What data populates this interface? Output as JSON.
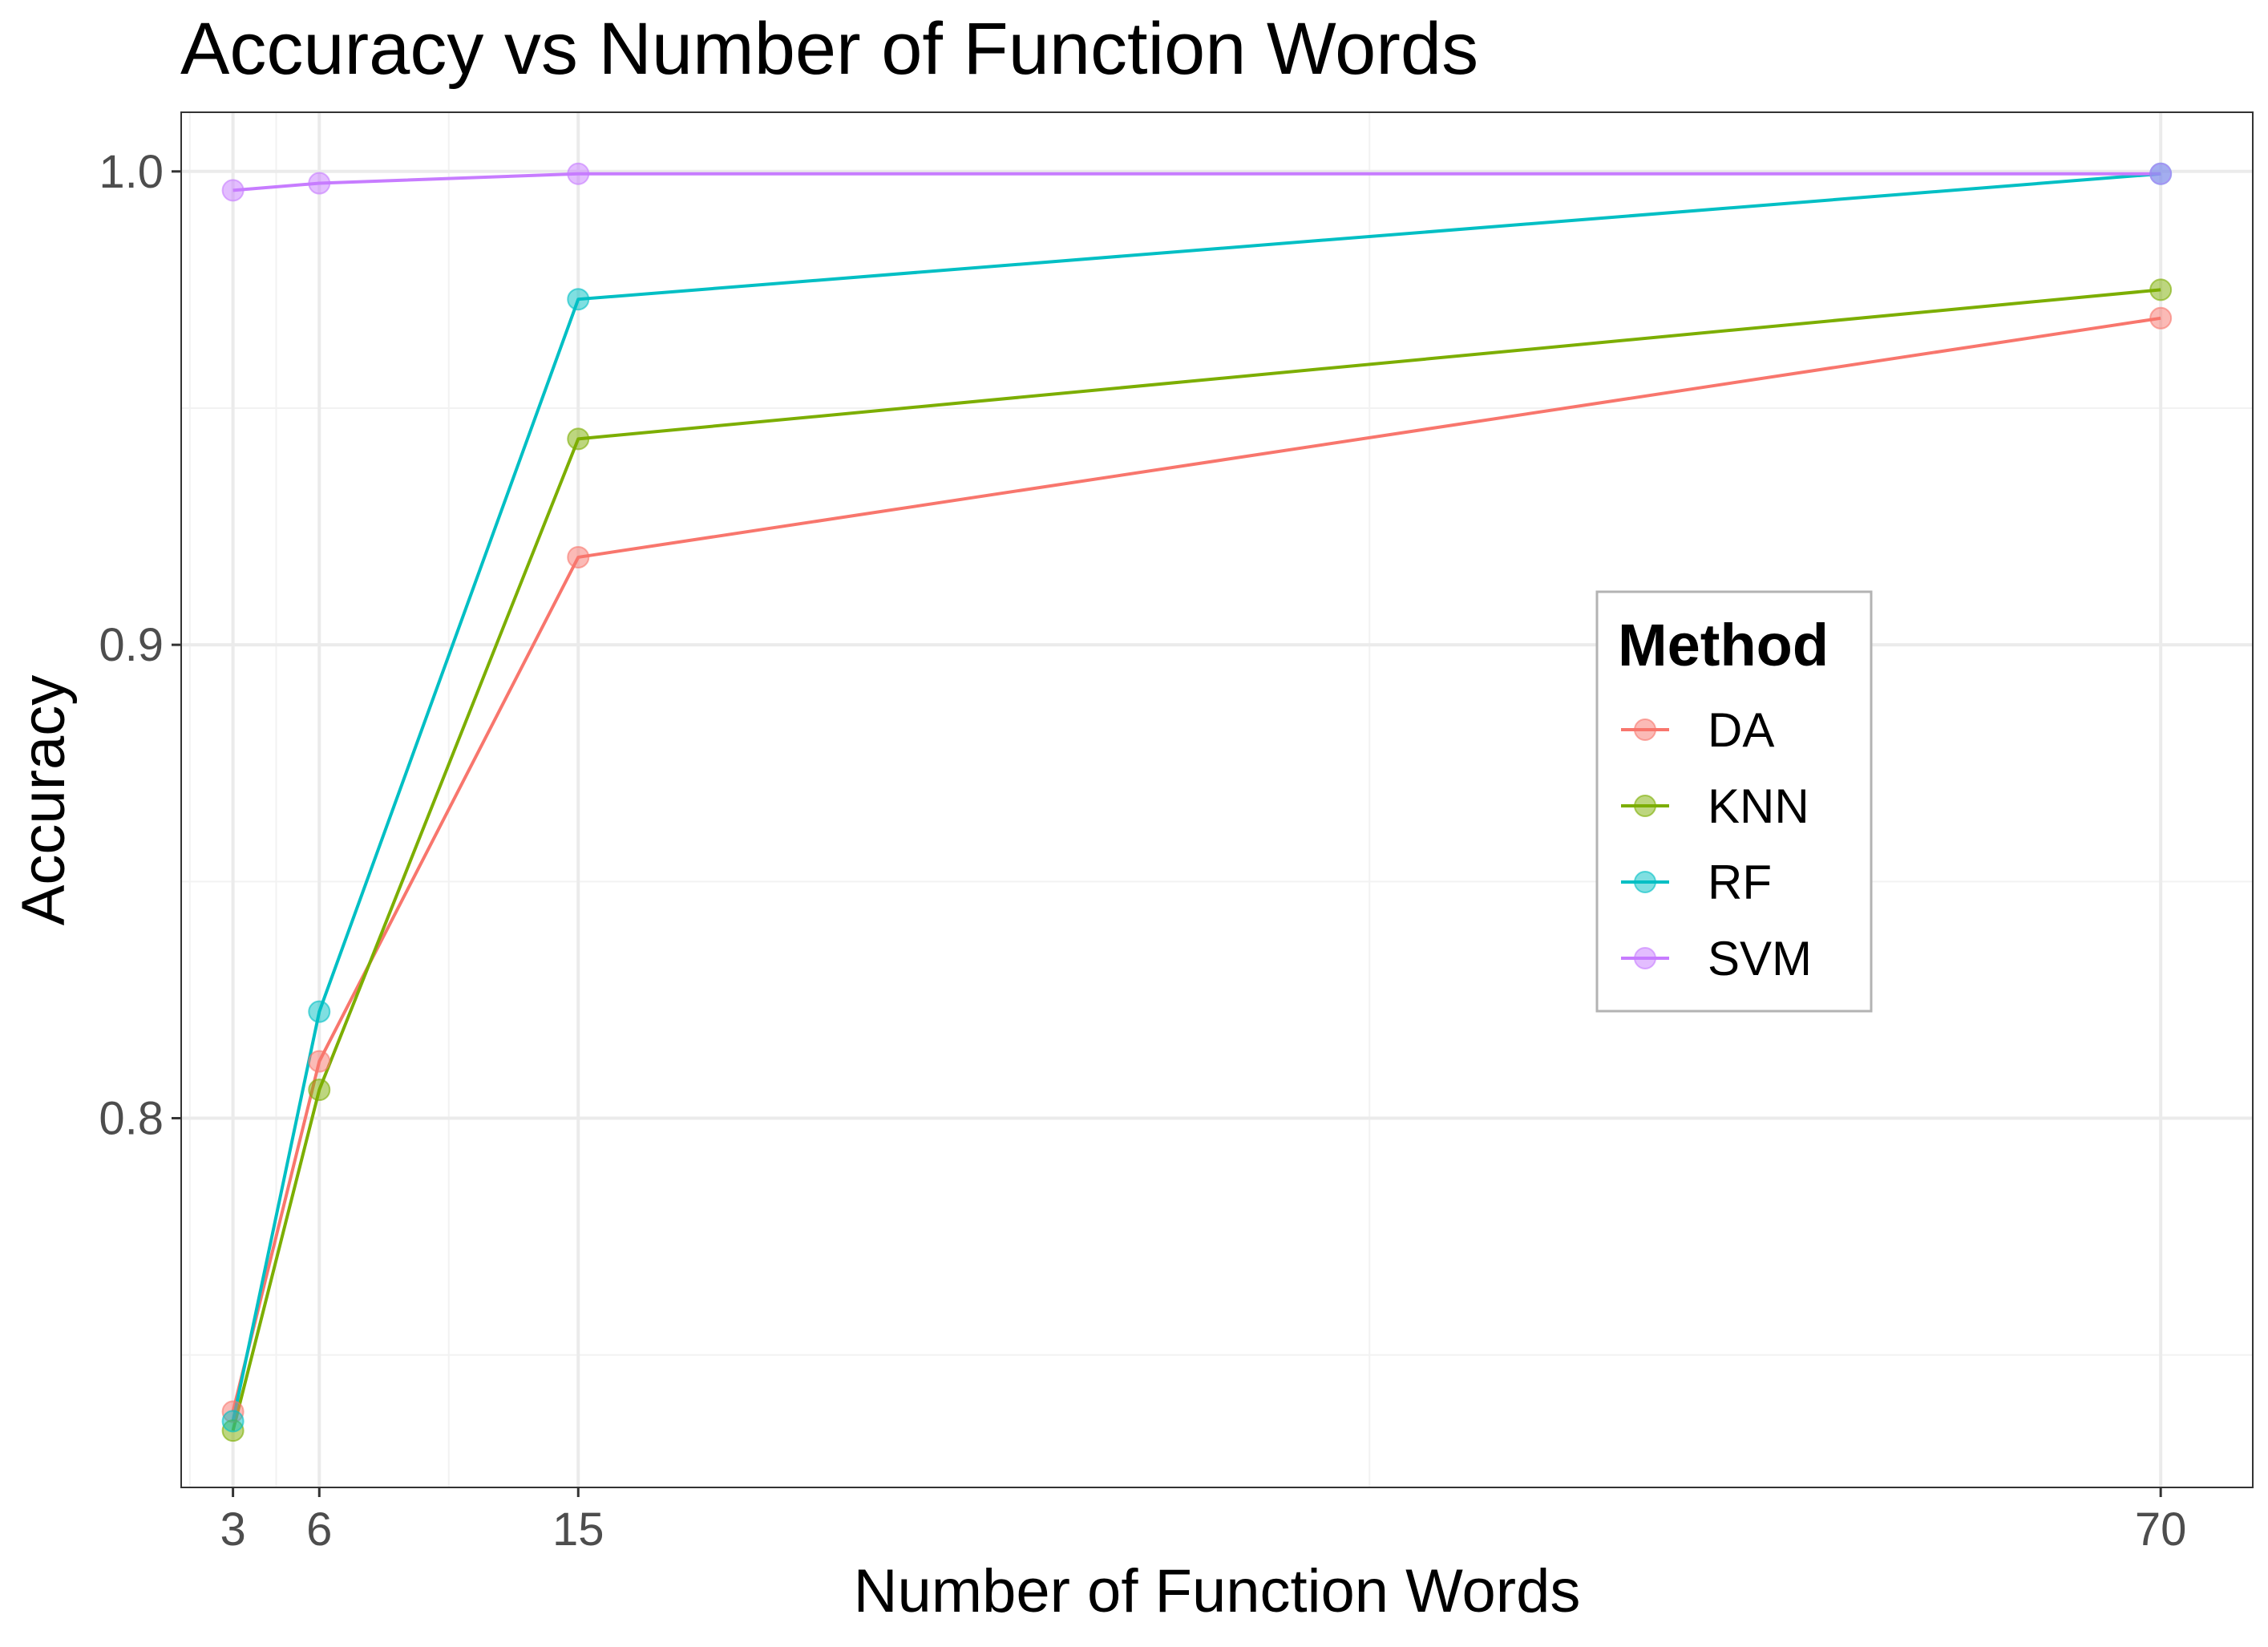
{
  "chart_data": {
    "type": "line",
    "title": "Accuracy vs Number of Function Words",
    "xlabel": "Number of Function Words",
    "ylabel": "Accuracy",
    "x": [
      3,
      6,
      15,
      70
    ],
    "x_ticks": [
      3,
      6,
      15,
      70
    ],
    "y_ticks": [
      0.8,
      0.9,
      1.0
    ],
    "y_tick_labels": [
      "0.8",
      "0.9",
      "1.0"
    ],
    "xlim": [
      1.2,
      73.2
    ],
    "ylim": [
      0.722,
      1.0125
    ],
    "grid": true,
    "legend": {
      "title": "Method",
      "placement": "right"
    },
    "series": [
      {
        "name": "DA",
        "color": "#F8766D",
        "values": [
          0.738,
          0.812,
          0.9185,
          0.969
        ]
      },
      {
        "name": "KNN",
        "color": "#7CAE00",
        "values": [
          0.734,
          0.806,
          0.9435,
          0.975
        ]
      },
      {
        "name": "RF",
        "color": "#00BFC4",
        "values": [
          0.736,
          0.8225,
          0.973,
          0.9995
        ]
      },
      {
        "name": "SVM",
        "color": "#C77CFF",
        "values": [
          0.996,
          0.9975,
          0.9995,
          0.9995
        ]
      }
    ]
  }
}
